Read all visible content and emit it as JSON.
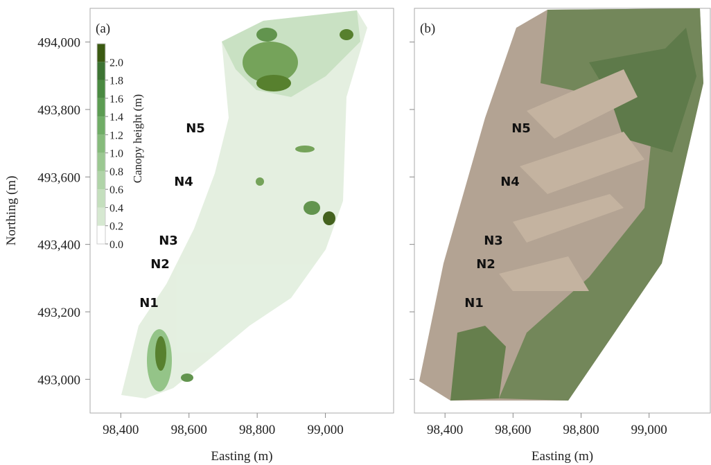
{
  "ylabel": "Northing (m)",
  "yticks": [
    {
      "value": 493000,
      "label": "493,000"
    },
    {
      "value": 493200,
      "label": "493,200"
    },
    {
      "value": 493400,
      "label": "493,400"
    },
    {
      "value": 493600,
      "label": "493,600"
    },
    {
      "value": 493800,
      "label": "493,800"
    },
    {
      "value": 494000,
      "label": "494,000"
    }
  ],
  "ylim": [
    492900,
    494100
  ],
  "panels": [
    {
      "label": "(a)",
      "xlabel": "Easting (m)",
      "xlim": [
        98310,
        99200
      ],
      "xticks": [
        {
          "value": 98400,
          "label": "98,400"
        },
        {
          "value": 98600,
          "label": "98,600"
        },
        {
          "value": 98800,
          "label": "98,800"
        },
        {
          "value": 99000,
          "label": "99,000"
        }
      ],
      "sites": [
        "N5",
        "N4",
        "N3",
        "N2",
        "N1"
      ],
      "colorbar": {
        "label": "Canopy height (m)",
        "lim": [
          0,
          2.2
        ],
        "ticks": [
          {
            "value": 0,
            "label": "0.0"
          },
          0.2,
          0.4,
          0.6,
          0.8,
          {
            "value": 1,
            "label": "1.0"
          },
          1.2,
          1.4,
          1.6,
          1.8,
          {
            "value": 2,
            "label": "2.0"
          }
        ],
        "colors": [
          "#ffffff",
          "#d6e8d1",
          "#c4dfbd",
          "#b0d4a8",
          "#9bc891",
          "#86bb7b",
          "#70ad66",
          "#5c9c52",
          "#4a8a41",
          "#3d7433",
          "#3b5a12"
        ]
      }
    },
    {
      "label": "(b)",
      "xlabel": "Easting (m)",
      "xlim": [
        98310,
        99180
      ],
      "xticks": [
        {
          "value": 98400,
          "label": "98,400"
        },
        {
          "value": 98600,
          "label": "98,600"
        },
        {
          "value": 98800,
          "label": "98,800"
        },
        {
          "value": 99000,
          "label": "99,000"
        }
      ],
      "sites": [
        "N5",
        "N4",
        "N3",
        "N2",
        "N1"
      ]
    }
  ]
}
